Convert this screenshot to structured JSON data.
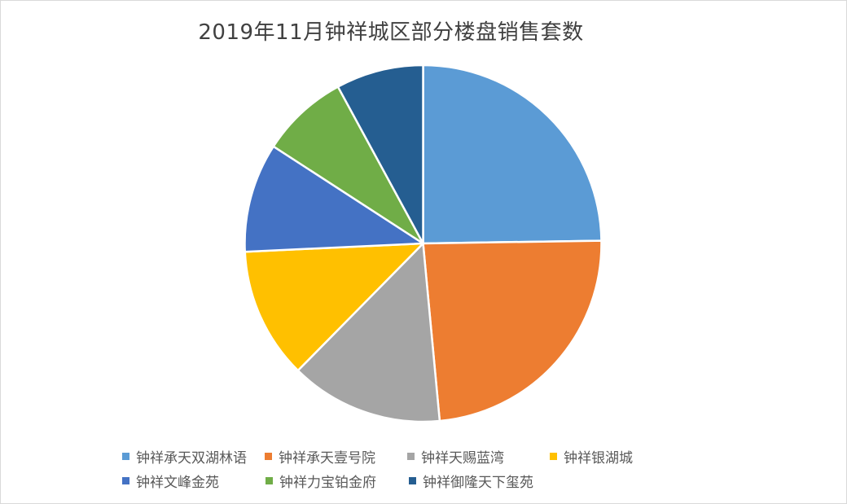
{
  "chart_data": {
    "type": "pie",
    "title": "2019年11月钟祥城区部分楼盘销售套数",
    "start_angle_deg": 0,
    "direction": "clockwise",
    "legend_position": "bottom",
    "slices": [
      {
        "label": "钟祥承天双湖林语",
        "value": 25,
        "color": "#5b9bd5"
      },
      {
        "label": "钟祥承天壹号院",
        "value": 24,
        "color": "#ed7d31"
      },
      {
        "label": "钟祥天赐蓝湾",
        "value": 14,
        "color": "#a5a5a5"
      },
      {
        "label": "钟祥银湖城",
        "value": 12,
        "color": "#ffc000"
      },
      {
        "label": "钟祥文峰金苑",
        "value": 10,
        "color": "#4472c4"
      },
      {
        "label": "钟祥力宝铂金府",
        "value": 8,
        "color": "#70ad47"
      },
      {
        "label": "钟祥御隆天下玺苑",
        "value": 8,
        "color": "#255e91"
      }
    ]
  }
}
